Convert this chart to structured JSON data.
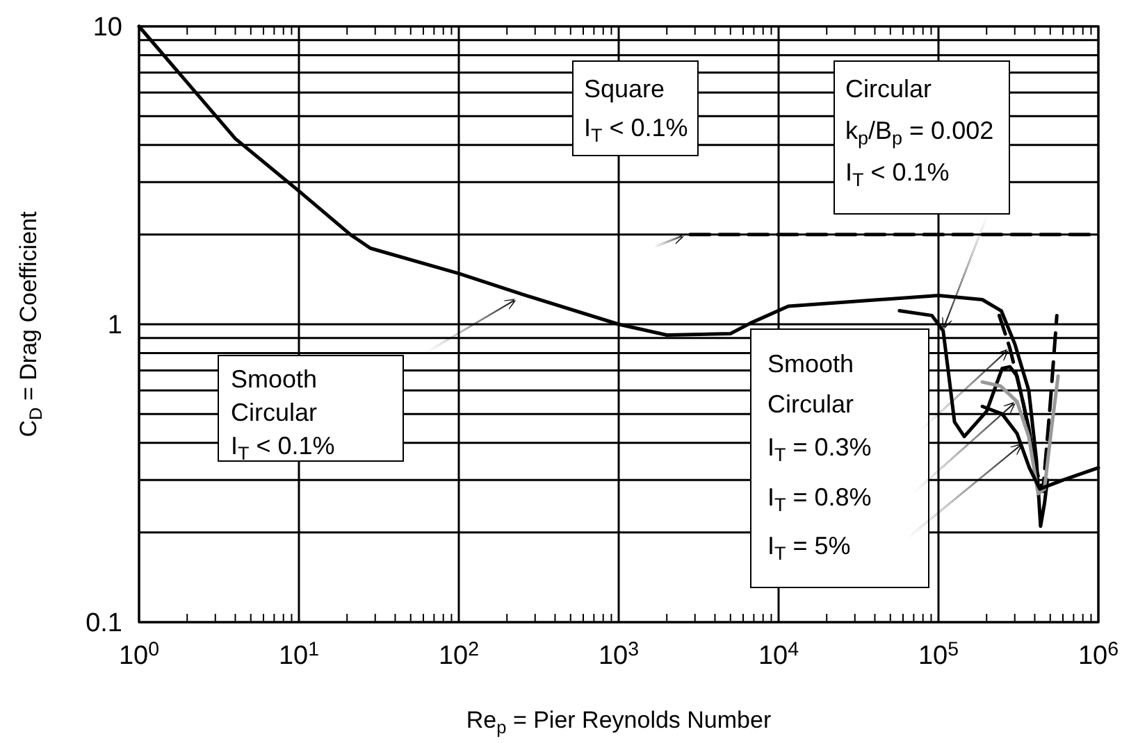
{
  "chart_data": {
    "type": "line",
    "xlabel": "Re$_{p}$ = Pier Reynolds Number",
    "ylabel": "C$_{D}$ = Drag Coefficient",
    "log": "xy",
    "grid": true,
    "marker": "none",
    "xlim": [
      1,
      1000000
    ],
    "ylim": [
      0.1,
      10
    ],
    "xticks": [
      {
        "value": 1,
        "label": "10$^{0}$"
      },
      {
        "value": 10,
        "label": "10$^{1}$"
      },
      {
        "value": 100,
        "label": "10$^{2}$"
      },
      {
        "value": 1000,
        "label": "10$^{3}$"
      },
      {
        "value": 10000,
        "label": "10$^{4}$"
      },
      {
        "value": 100000,
        "label": "10$^{5}$"
      },
      {
        "value": 1000000,
        "label": "10$^{6}$"
      }
    ],
    "yticks": [
      0.1,
      1,
      10
    ],
    "series": [
      {
        "color": "#000000",
        "line_style": "solid",
        "x": [
          1,
          4,
          10,
          21,
          28,
          100,
          250,
          1000,
          2000,
          5000,
          6700,
          11500,
          100000,
          188000,
          247000,
          300000,
          367000,
          410000,
          435000,
          460000,
          480000
        ],
        "values": [
          10,
          4.2,
          2.8,
          2.0,
          1.8,
          1.48,
          1.26,
          1.0,
          0.92,
          0.93,
          1.01,
          1.15,
          1.25,
          1.21,
          1.11,
          0.86,
          0.6,
          0.35,
          0.21,
          0.25,
          0.3
        ]
      },
      {
        "color": "#000000",
        "line_style": "dashed",
        "x": [
          2800,
          1000000
        ],
        "values": [
          2,
          2
        ]
      },
      {
        "color": "#000000",
        "line_style": "solid",
        "x": [
          57000,
          91000,
          107000,
          115000,
          126000,
          145000,
          200000,
          250000,
          280000,
          310000,
          367000,
          410000
        ],
        "values": [
          1.11,
          1.07,
          0.95,
          0.7,
          0.47,
          0.42,
          0.51,
          0.71,
          0.72,
          0.67,
          0.45,
          0.3
        ]
      },
      {
        "color": "#000000",
        "line_style": "dashed",
        "x": [
          240000,
          280000,
          340000,
          405000,
          450000,
          500000,
          550000
        ],
        "values": [
          1.07,
          0.83,
          0.54,
          0.33,
          0.275,
          0.54,
          1.07
        ]
      },
      {
        "color": "#999999",
        "line_style": "solid",
        "x": [
          188000,
          245000,
          310000,
          367000,
          420000,
          460000,
          510000,
          560000
        ],
        "values": [
          0.64,
          0.62,
          0.55,
          0.42,
          0.27,
          0.28,
          0.45,
          0.67
        ]
      },
      {
        "color": "#000000",
        "line_style": "solid",
        "x": [
          188000,
          250000,
          310000,
          370000,
          430000,
          600000,
          1000000
        ],
        "values": [
          0.53,
          0.5,
          0.43,
          0.33,
          0.28,
          0.3,
          0.33
        ]
      }
    ],
    "annotations": [
      "Smooth\nCircular\nI$_{T}$ < 0.1%",
      "Square\nI$_{T}$ < 0.1%",
      "Circular\nk$_{p}$/B$_{p}$ = 0.002\nI$_{T}$ < 0.1%",
      "Smooth\nCircular",
      "I$_{T}$ = 0.3%",
      "I$_{T}$ = 0.8%",
      "I$_{T}$ = 5%"
    ]
  }
}
